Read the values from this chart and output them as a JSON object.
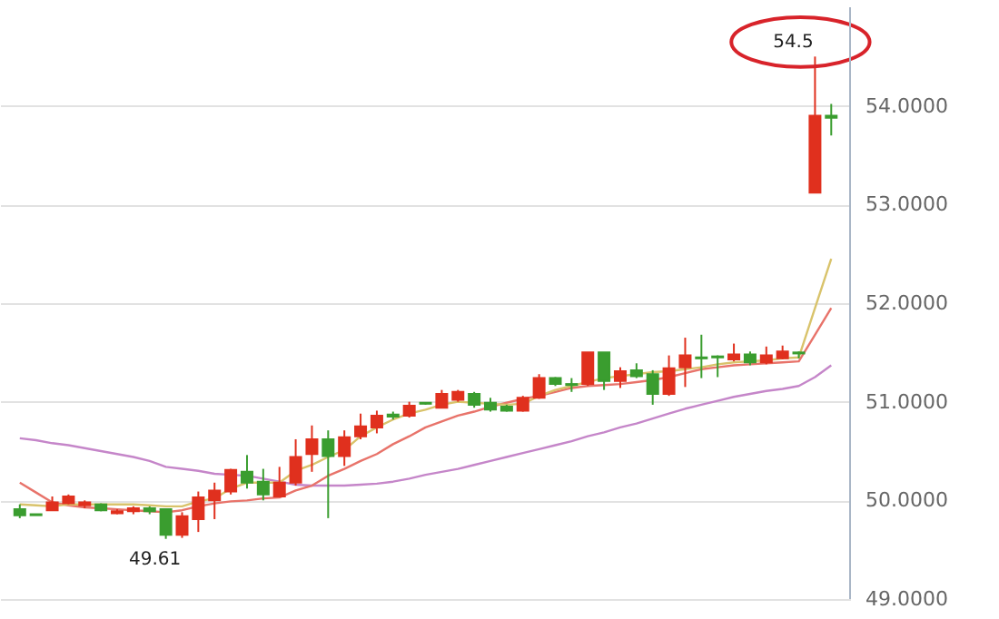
{
  "chart_data": {
    "type": "candlestick",
    "categories": [
      null,
      null,
      null,
      null,
      null,
      null,
      null,
      null,
      null,
      null,
      null,
      null,
      null,
      null,
      null,
      null,
      null,
      null,
      null,
      null,
      null,
      null,
      null,
      null,
      null,
      null,
      null,
      null,
      null,
      null,
      null,
      null,
      null,
      null,
      null,
      null,
      null,
      null,
      null,
      null,
      null,
      null,
      null,
      null,
      null,
      null,
      null,
      null,
      null,
      null,
      null
    ],
    "ohlc": [
      [
        49.91,
        49.96,
        49.82,
        49.85
      ],
      [
        49.86,
        49.86,
        49.85,
        49.85
      ],
      [
        49.9,
        50.04,
        49.9,
        49.98
      ],
      [
        49.97,
        50.06,
        49.96,
        50.04
      ],
      [
        49.95,
        50.0,
        49.92,
        49.98
      ],
      [
        49.96,
        49.97,
        49.89,
        49.9
      ],
      [
        49.87,
        49.91,
        49.86,
        49.89
      ],
      [
        49.89,
        49.94,
        49.86,
        49.92
      ],
      [
        49.92,
        49.94,
        49.86,
        49.89
      ],
      [
        49.91,
        49.91,
        49.61,
        49.65
      ],
      [
        49.65,
        49.88,
        49.62,
        49.84
      ],
      [
        49.81,
        50.09,
        49.68,
        50.03
      ],
      [
        50.0,
        50.18,
        49.81,
        50.1
      ],
      [
        50.09,
        50.32,
        50.06,
        50.31
      ],
      [
        50.29,
        50.46,
        50.12,
        50.18
      ],
      [
        50.19,
        50.32,
        50.0,
        50.06
      ],
      [
        50.04,
        50.34,
        50.03,
        50.18
      ],
      [
        50.18,
        50.62,
        50.15,
        50.44
      ],
      [
        50.47,
        50.76,
        50.29,
        50.62
      ],
      [
        50.62,
        50.71,
        49.82,
        50.45
      ],
      [
        50.45,
        50.71,
        50.35,
        50.64
      ],
      [
        50.65,
        50.88,
        50.62,
        50.75
      ],
      [
        50.74,
        50.91,
        50.68,
        50.86
      ],
      [
        50.87,
        50.9,
        50.82,
        50.85
      ],
      [
        50.86,
        51.0,
        50.84,
        50.96
      ],
      [
        50.99,
        50.99,
        50.97,
        50.98
      ],
      [
        50.94,
        51.12,
        50.94,
        51.08
      ],
      [
        51.02,
        51.12,
        51.0,
        51.1
      ],
      [
        51.08,
        51.1,
        50.94,
        50.97
      ],
      [
        50.99,
        51.04,
        50.9,
        50.92
      ],
      [
        50.95,
        50.97,
        50.9,
        50.91
      ],
      [
        50.91,
        51.06,
        50.9,
        51.04
      ],
      [
        51.04,
        51.28,
        51.03,
        51.24
      ],
      [
        51.24,
        51.25,
        51.16,
        51.18
      ],
      [
        51.18,
        51.24,
        51.1,
        51.17
      ],
      [
        51.18,
        51.5,
        51.16,
        51.5
      ],
      [
        51.5,
        51.5,
        51.12,
        51.21
      ],
      [
        51.21,
        51.35,
        51.14,
        51.31
      ],
      [
        51.32,
        51.39,
        51.24,
        51.26
      ],
      [
        51.28,
        51.32,
        50.97,
        51.08
      ],
      [
        51.08,
        51.47,
        51.06,
        51.34
      ],
      [
        51.35,
        51.65,
        51.15,
        51.47
      ],
      [
        51.45,
        51.68,
        51.24,
        51.44
      ],
      [
        51.46,
        51.47,
        51.25,
        51.45
      ],
      [
        51.43,
        51.59,
        51.41,
        51.48
      ],
      [
        51.48,
        51.51,
        51.37,
        51.4
      ],
      [
        51.4,
        51.56,
        51.38,
        51.47
      ],
      [
        51.44,
        51.57,
        51.43,
        51.51
      ],
      [
        51.5,
        51.51,
        51.44,
        51.49
      ],
      [
        53.12,
        54.5,
        53.12,
        53.9
      ],
      [
        53.9,
        54.02,
        53.7,
        53.88
      ]
    ],
    "colors": [
      "#3a9d2f",
      "#3a9d2f",
      "#e0301e",
      "#e0301e",
      "#e0301e",
      "#3a9d2f",
      "#e0301e",
      "#e0301e",
      "#3a9d2f",
      "#3a9d2f",
      "#e0301e",
      "#e0301e",
      "#e0301e",
      "#e0301e",
      "#3a9d2f",
      "#3a9d2f",
      "#e0301e",
      "#e0301e",
      "#e0301e",
      "#3a9d2f",
      "#e0301e",
      "#e0301e",
      "#e0301e",
      "#3a9d2f",
      "#e0301e",
      "#3a9d2f",
      "#e0301e",
      "#e0301e",
      "#3a9d2f",
      "#3a9d2f",
      "#3a9d2f",
      "#e0301e",
      "#e0301e",
      "#3a9d2f",
      "#3a9d2f",
      "#e0301e",
      "#3a9d2f",
      "#e0301e",
      "#3a9d2f",
      "#3a9d2f",
      "#e0301e",
      "#e0301e",
      "#3a9d2f",
      "#3a9d2f",
      "#e0301e",
      "#3a9d2f",
      "#e0301e",
      "#e0301e",
      "#3a9d2f",
      "#e0301e",
      "#3a9d2f"
    ],
    "series": [
      {
        "type": "line",
        "color": "#c586c9",
        "values": [
          50.63,
          50.61,
          50.58,
          50.56,
          50.53,
          50.5,
          50.47,
          50.44,
          50.4,
          50.34,
          50.32,
          50.3,
          50.27,
          50.26,
          50.25,
          50.22,
          50.19,
          50.16,
          50.15,
          50.15,
          50.15,
          50.16,
          50.17,
          50.19,
          50.22,
          50.26,
          50.29,
          50.32,
          50.36,
          50.4,
          50.44,
          50.48,
          50.52,
          50.56,
          50.6,
          50.65,
          50.69,
          50.74,
          50.78,
          50.83,
          50.88,
          50.93,
          50.97,
          51.01,
          51.05,
          51.08,
          51.11,
          51.13,
          51.16,
          51.25,
          51.37
        ]
      },
      {
        "type": "line",
        "color": "#e8736a",
        "values": [
          50.18,
          50.08,
          49.98,
          49.95,
          49.93,
          49.92,
          49.91,
          49.9,
          49.89,
          49.88,
          49.9,
          49.94,
          49.97,
          49.99,
          50.0,
          50.02,
          50.03,
          50.1,
          50.15,
          50.25,
          50.32,
          50.4,
          50.47,
          50.57,
          50.65,
          50.74,
          50.8,
          50.86,
          50.9,
          50.95,
          50.99,
          51.03,
          51.06,
          51.1,
          51.14,
          51.16,
          51.17,
          51.18,
          51.2,
          51.22,
          51.25,
          51.29,
          51.33,
          51.35,
          51.37,
          51.38,
          51.39,
          51.4,
          51.41,
          51.68,
          51.95
        ]
      },
      {
        "type": "line",
        "color": "#d9c36b",
        "values": [
          49.96,
          49.95,
          49.94,
          49.96,
          49.96,
          49.96,
          49.96,
          49.96,
          49.95,
          49.94,
          49.94,
          49.99,
          50.02,
          50.12,
          50.18,
          50.18,
          50.18,
          50.3,
          50.36,
          50.44,
          50.51,
          50.65,
          50.74,
          50.82,
          50.88,
          50.92,
          50.97,
          51.0,
          50.99,
          50.98,
          50.97,
          50.98,
          51.06,
          51.12,
          51.16,
          51.2,
          51.24,
          51.26,
          51.28,
          51.3,
          51.31,
          51.33,
          51.35,
          51.38,
          51.4,
          51.41,
          51.42,
          51.44,
          51.45,
          51.95,
          52.45
        ]
      }
    ],
    "annotations": [
      "54.5",
      {
        "text": "49.61",
        "y": 49.61
      }
    ],
    "ylim": [
      49,
      55
    ],
    "yticks": [
      {
        "value": 49,
        "label": "49.0000"
      },
      {
        "value": 50,
        "label": "50.0000"
      },
      {
        "value": 51,
        "label": "51.0000"
      },
      {
        "value": 52,
        "label": "52.0000"
      },
      {
        "value": 53,
        "label": "53.0000"
      },
      {
        "value": 54,
        "label": "54.0000"
      }
    ],
    "grid": "y",
    "tick_labels": "y"
  }
}
